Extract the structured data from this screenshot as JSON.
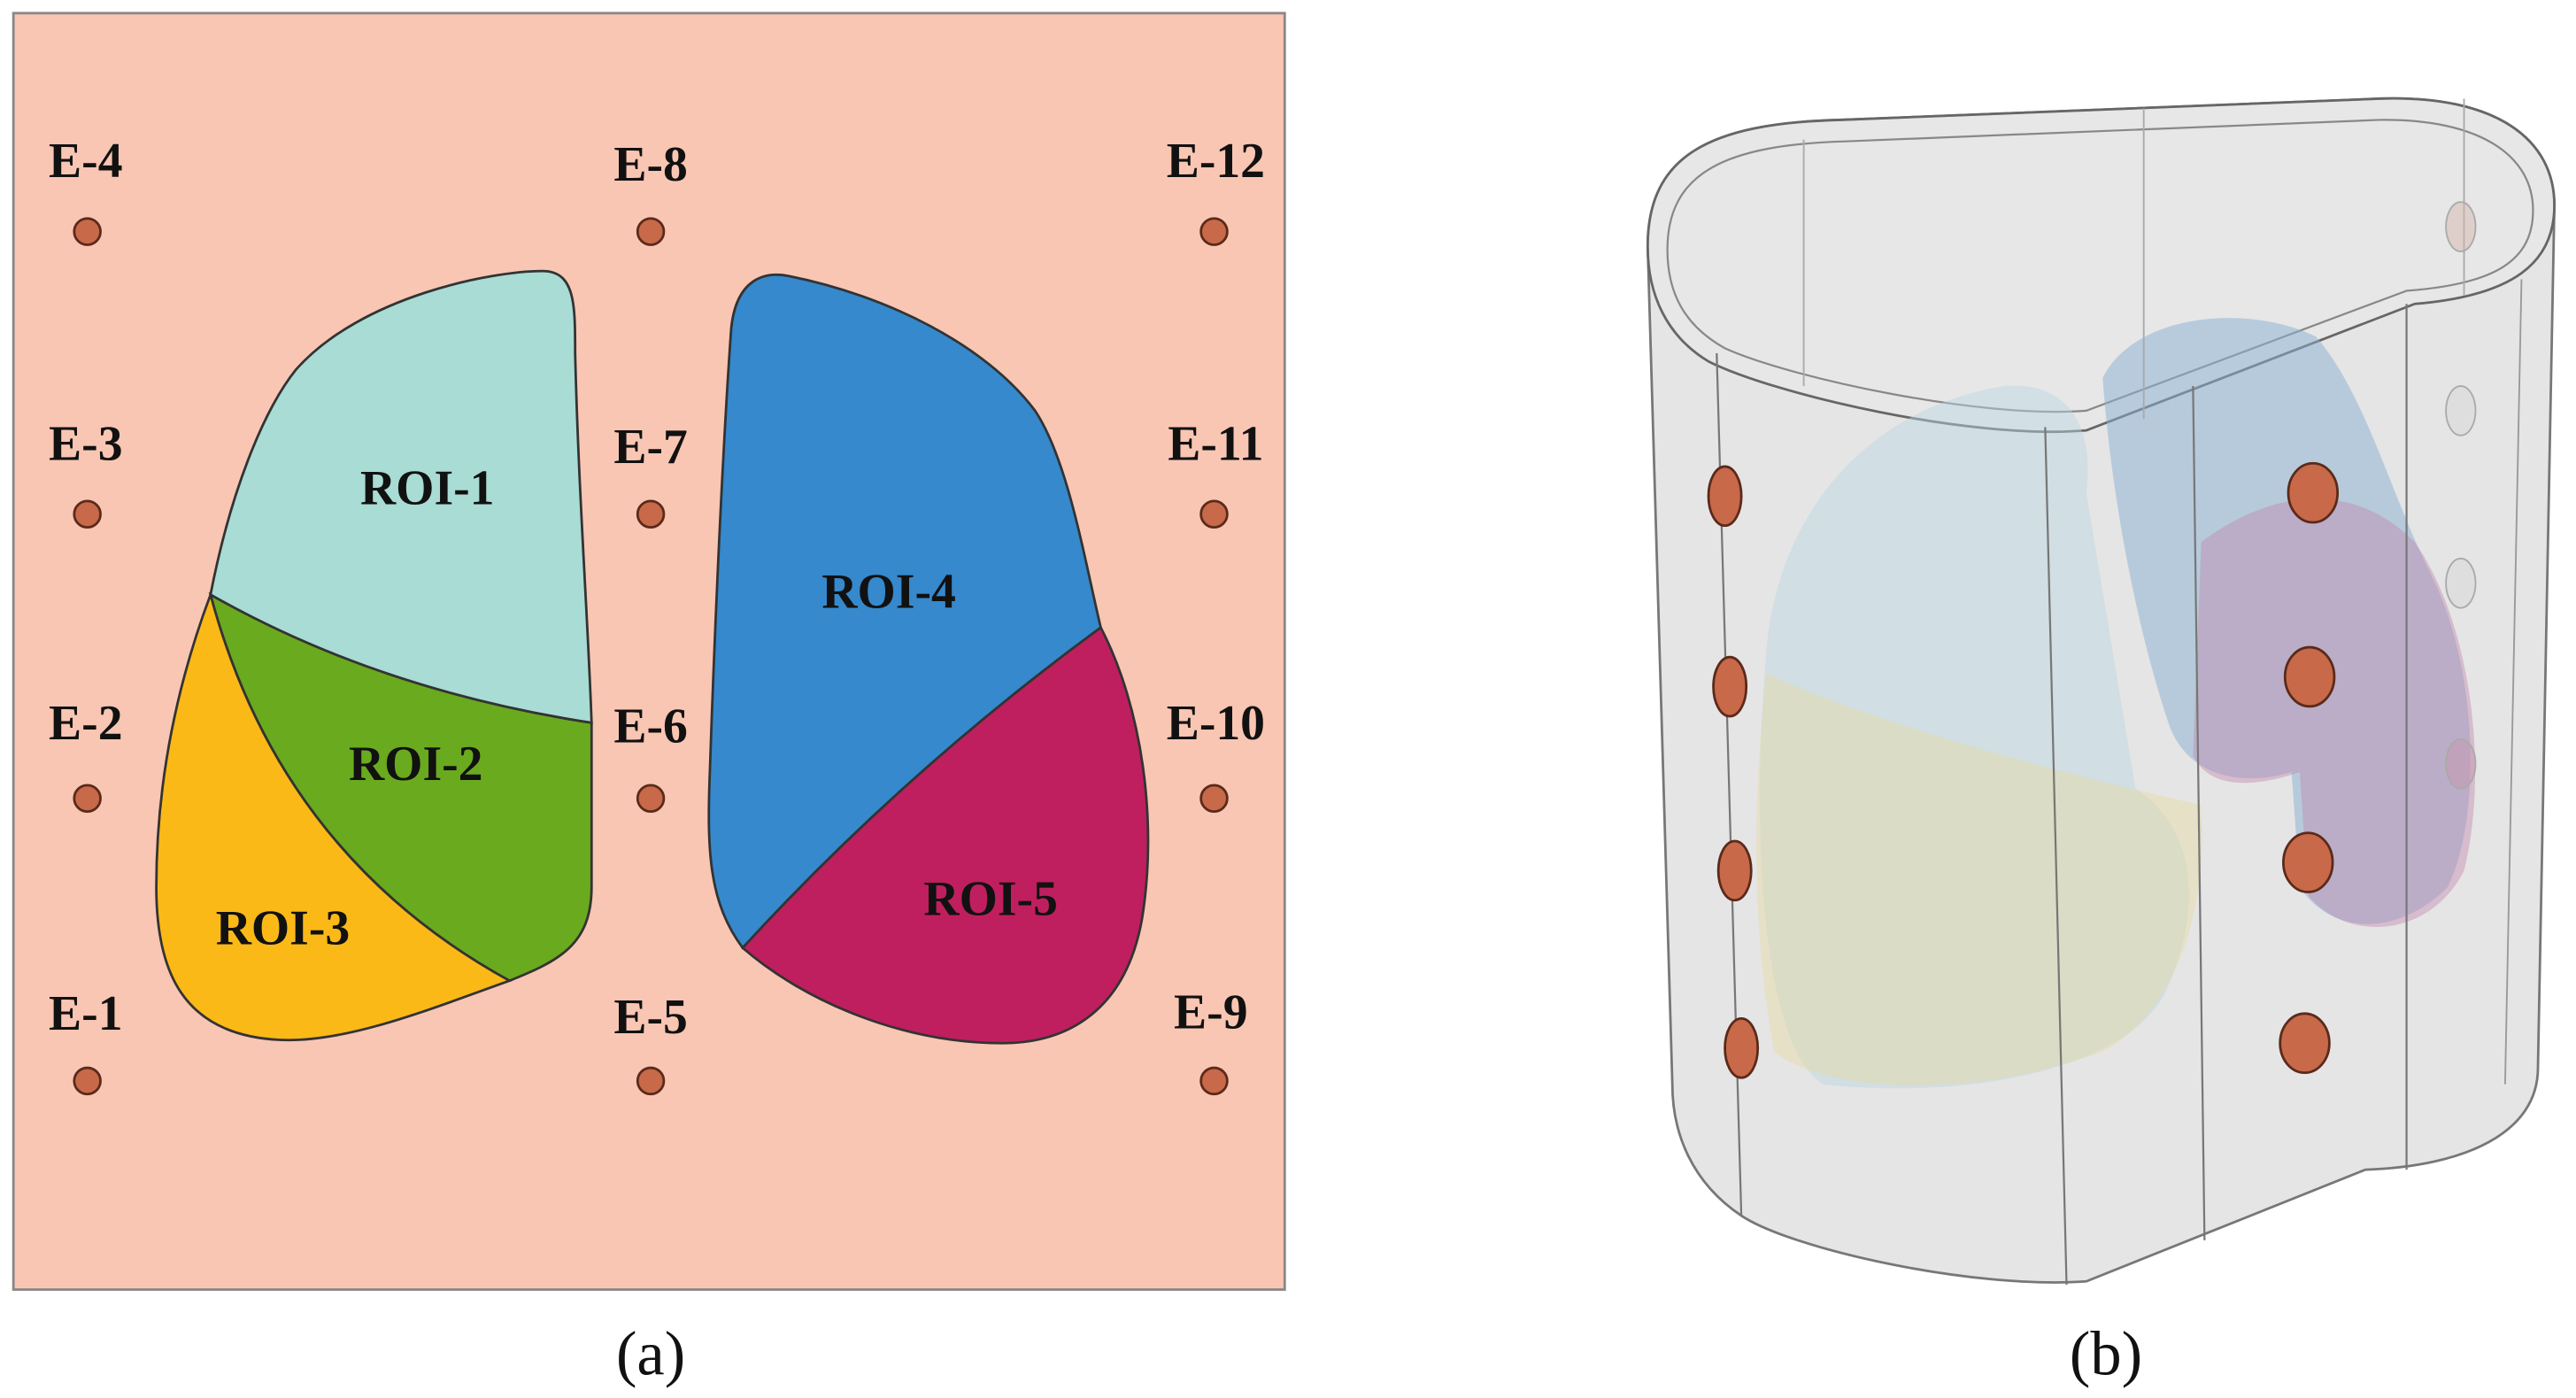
{
  "panel_a": {
    "electrodes": [
      "E-1",
      "E-2",
      "E-3",
      "E-4",
      "E-5",
      "E-6",
      "E-7",
      "E-8",
      "E-9",
      "E-10",
      "E-11",
      "E-12"
    ],
    "rois": [
      "ROI-1",
      "ROI-2",
      "ROI-3",
      "ROI-4",
      "ROI-5"
    ],
    "caption": "(a)"
  },
  "panel_b": {
    "caption": "(b)"
  }
}
